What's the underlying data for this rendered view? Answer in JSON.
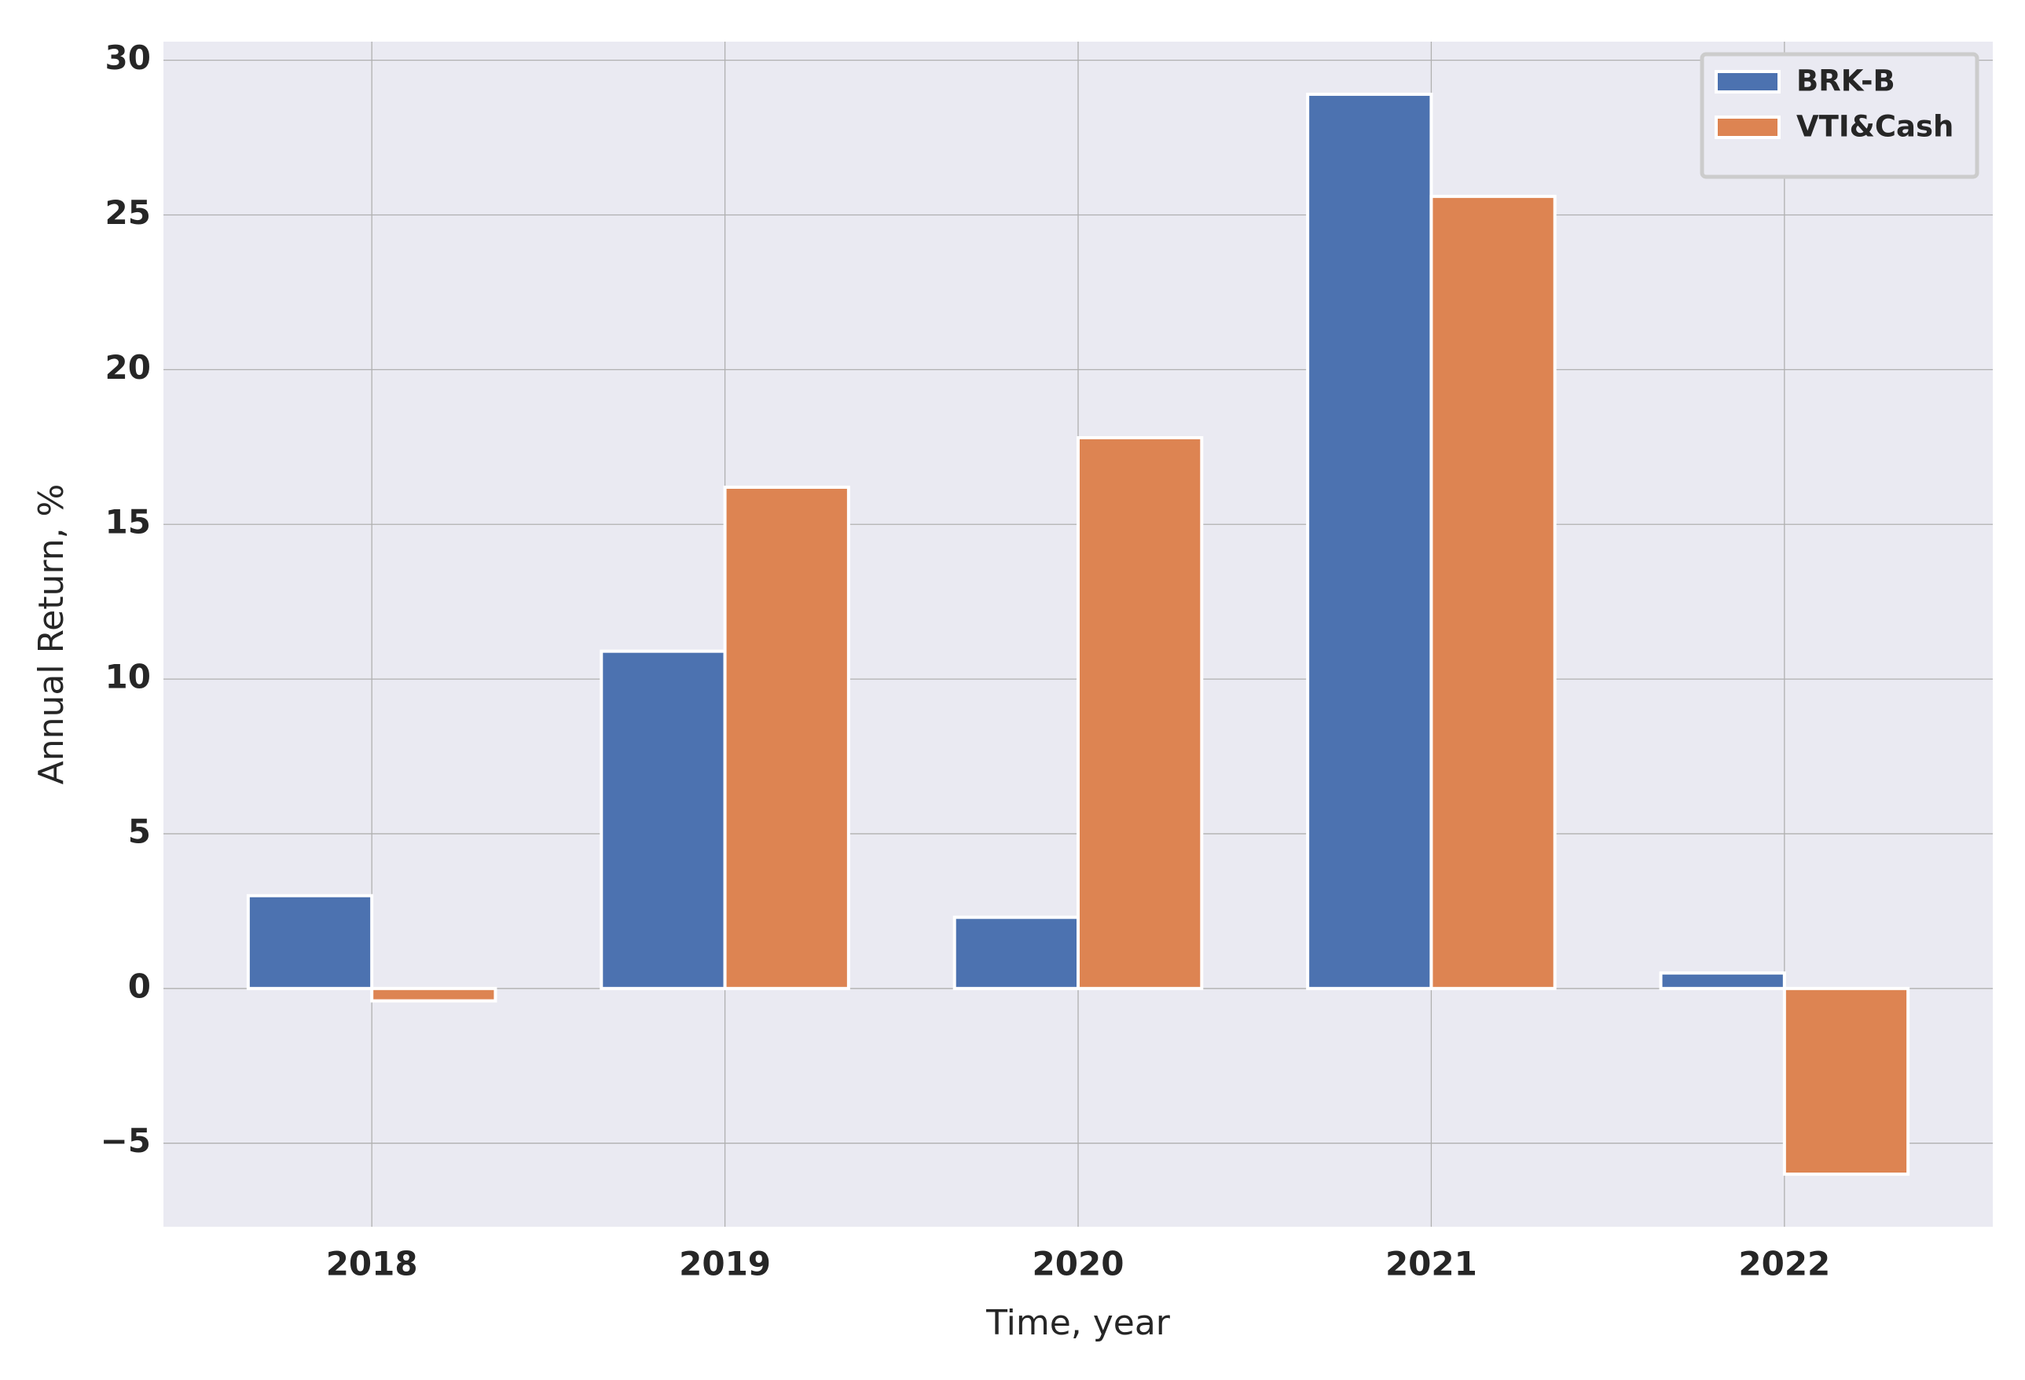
{
  "chart_data": {
    "type": "bar",
    "x_label": "Time, year",
    "y_label": "Annual Return, %",
    "categories": [
      "2018",
      "2019",
      "2020",
      "2021",
      "2022"
    ],
    "series": [
      {
        "name": "BRK-B",
        "color": "#4c72b0",
        "values": [
          3.0,
          10.9,
          2.3,
          28.9,
          0.5
        ]
      },
      {
        "name": "VTI&Cash",
        "color": "#dd8452",
        "values": [
          -0.4,
          16.2,
          17.8,
          25.6,
          -6.0
        ]
      }
    ],
    "ylim": [
      -7.7,
      30.6
    ],
    "yticks": [
      {
        "value": -5,
        "label": "−5"
      },
      0,
      5,
      10,
      15,
      20,
      25,
      30
    ],
    "grid": true,
    "legend": "upper right"
  }
}
